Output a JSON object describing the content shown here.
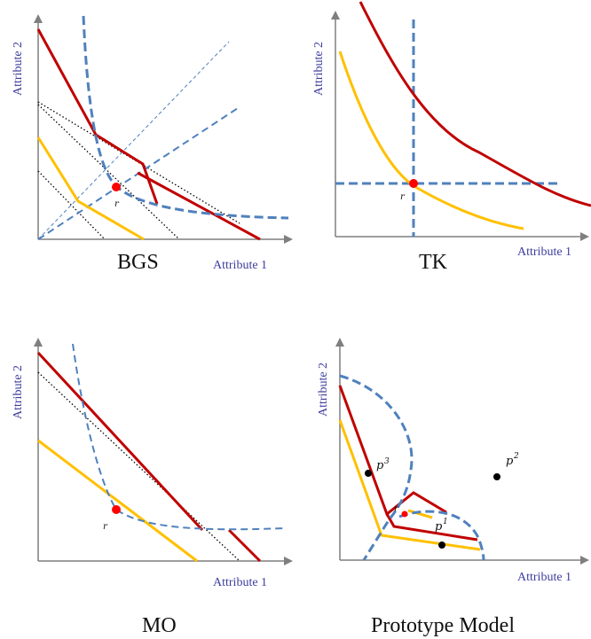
{
  "panels": {
    "bgs": {
      "title": "BGS",
      "xlabel": "Attribute 1",
      "ylabel": "Attribute 2",
      "point_label": "r"
    },
    "tk": {
      "title": "TK",
      "xlabel": "Attribute 1",
      "ylabel": "Attribute 2",
      "point_label": "r"
    },
    "mo": {
      "title": "MO",
      "xlabel": "Attribute 1",
      "ylabel": "Attribute 2",
      "point_label": "r"
    },
    "proto": {
      "title": "Prototype Model",
      "xlabel": "Attribute 1",
      "ylabel": "Attribute 2",
      "point_label": "r",
      "p3": "p",
      "p3_sup": "3",
      "p2": "p",
      "p2_sup": "2",
      "p1": "p",
      "p1_sup": "1"
    }
  },
  "colors": {
    "red_line": "#c00000",
    "yellow_line": "#ffc000",
    "blue_dash": "#4f81bd",
    "axis_label": "#3d3d9e",
    "reference_point": "#ff0000"
  }
}
